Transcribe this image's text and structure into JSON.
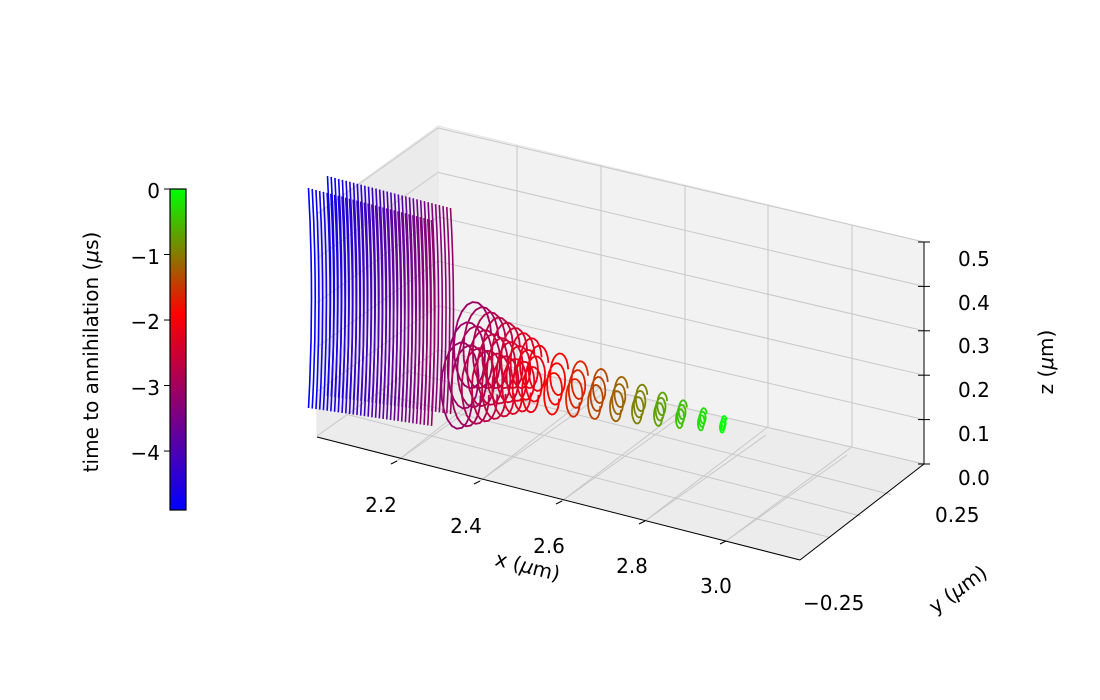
{
  "chart_data": {
    "type": "line",
    "projection": "3d",
    "xlabel_prefix": "x (",
    "ylabel_prefix": "y (",
    "zlabel_prefix": "z (",
    "unit_mu": "μ",
    "unit_m": "m)",
    "x_ticks": [
      "2.2",
      "2.4",
      "2.6",
      "2.8",
      "3.0"
    ],
    "x_tick_values": [
      2.2,
      2.4,
      2.6,
      2.8,
      3.0
    ],
    "y_ticks": [
      "0.25",
      "−0.25"
    ],
    "y_tick_values": [
      0.25,
      -0.25
    ],
    "z_ticks": [
      "0.0",
      "0.1",
      "0.2",
      "0.3",
      "0.4",
      "0.5"
    ],
    "z_tick_values": [
      0.0,
      0.1,
      0.2,
      0.3,
      0.4,
      0.5
    ],
    "xlim": [
      2.05,
      3.15
    ],
    "ylim": [
      -0.35,
      0.35
    ],
    "zlim": [
      0.0,
      0.5
    ],
    "grid": true,
    "colorbar": {
      "label_prefix": "time to annihilation (",
      "label_mu": "μ",
      "label_suffix": "s)",
      "ticks": [
        "0",
        "−1",
        "−2",
        "−3",
        "−4"
      ],
      "tick_values": [
        0,
        -1,
        -2,
        -3,
        -4
      ],
      "range": [
        -4.9,
        0
      ],
      "colors": [
        "#0000ff",
        "#ff0000",
        "#00ff00"
      ],
      "placement": "left"
    },
    "curve_groups": [
      {
        "name": "",
        "time_range": [
          -4.9,
          -3.15
        ],
        "x_range": [
          2.15,
          2.45
        ],
        "shape": "vertical lines",
        "count": 34
      },
      {
        "name": "",
        "time_range": [
          -3.1,
          -2.2
        ],
        "x_range": [
          2.47,
          2.62
        ],
        "shape": "loops",
        "count": 8
      },
      {
        "name": "",
        "time_range": [
          -2.1,
          0.0
        ],
        "x_range": [
          2.64,
          3.1
        ],
        "shape": "loops",
        "count": 10
      }
    ]
  }
}
